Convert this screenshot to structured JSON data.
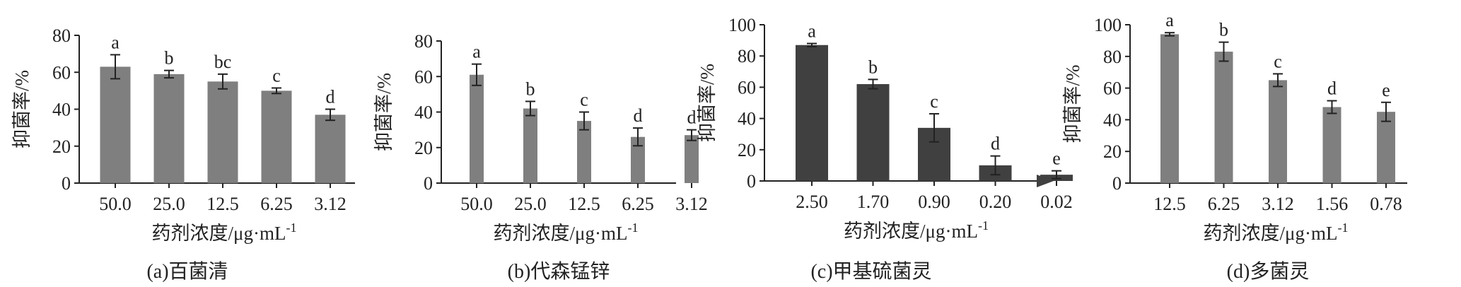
{
  "chart_data": [
    {
      "type": "bar",
      "caption": "(a)百菌清",
      "xlabel": "药剂浓度/μg·mL",
      "xlabel_sup": "-1",
      "ylabel": "抑菌率/%",
      "ylim": [
        0,
        80
      ],
      "yticks": [
        0,
        20,
        40,
        60,
        80
      ],
      "categories": [
        "50.0",
        "25.0",
        "12.5",
        "6.25",
        "3.12"
      ],
      "values": [
        63,
        59,
        55,
        50,
        37
      ],
      "errors": [
        6.5,
        2,
        4,
        1.5,
        3
      ],
      "significance": [
        "a",
        "b",
        "bc",
        "c",
        "d"
      ],
      "bar_color": "#7f7f7f",
      "arrow": false
    },
    {
      "type": "bar",
      "caption": "(b)代森锰锌",
      "xlabel": "药剂浓度/μg·mL",
      "xlabel_sup": "-1",
      "ylabel": "抑菌率/%",
      "ylim": [
        0,
        80
      ],
      "yticks": [
        0,
        20,
        40,
        60,
        80
      ],
      "categories": [
        "50.0",
        "25.0",
        "12.5",
        "6.25",
        "3.12"
      ],
      "values": [
        61,
        42,
        35,
        26,
        27
      ],
      "errors": [
        6,
        4,
        5,
        5,
        3
      ],
      "significance": [
        "a",
        "b",
        "c",
        "d",
        "d"
      ],
      "bar_color": "#7f7f7f",
      "arrow": false
    },
    {
      "type": "bar",
      "caption": "(c)甲基硫菌灵",
      "xlabel": "药剂浓度/μg·mL",
      "xlabel_sup": "-1",
      "ylabel": "抑菌率/%",
      "ylim": [
        0,
        100
      ],
      "yticks": [
        0,
        20,
        40,
        60,
        80,
        100
      ],
      "categories": [
        "2.50",
        "1.70",
        "0.90",
        "0.20",
        "0.02"
      ],
      "values": [
        87,
        62,
        34,
        10,
        4
      ],
      "errors": [
        1,
        3,
        9,
        6,
        2.5
      ],
      "significance": [
        "a",
        "b",
        "c",
        "d",
        "e"
      ],
      "bar_color": "#404040",
      "arrow": true
    },
    {
      "type": "bar",
      "caption": "(d)多菌灵",
      "xlabel": "药剂浓度/μg·mL",
      "xlabel_sup": "-1",
      "ylabel": "抑菌率/%",
      "ylim": [
        0,
        100
      ],
      "yticks": [
        0,
        20,
        40,
        60,
        80,
        100
      ],
      "categories": [
        "12.5",
        "6.25",
        "3.12",
        "1.56",
        "0.78"
      ],
      "values": [
        94,
        83,
        65,
        48,
        45
      ],
      "errors": [
        1,
        6,
        4,
        4,
        6
      ],
      "significance": [
        "a",
        "b",
        "c",
        "d",
        "e"
      ],
      "bar_color": "#7f7f7f",
      "arrow": false
    }
  ]
}
